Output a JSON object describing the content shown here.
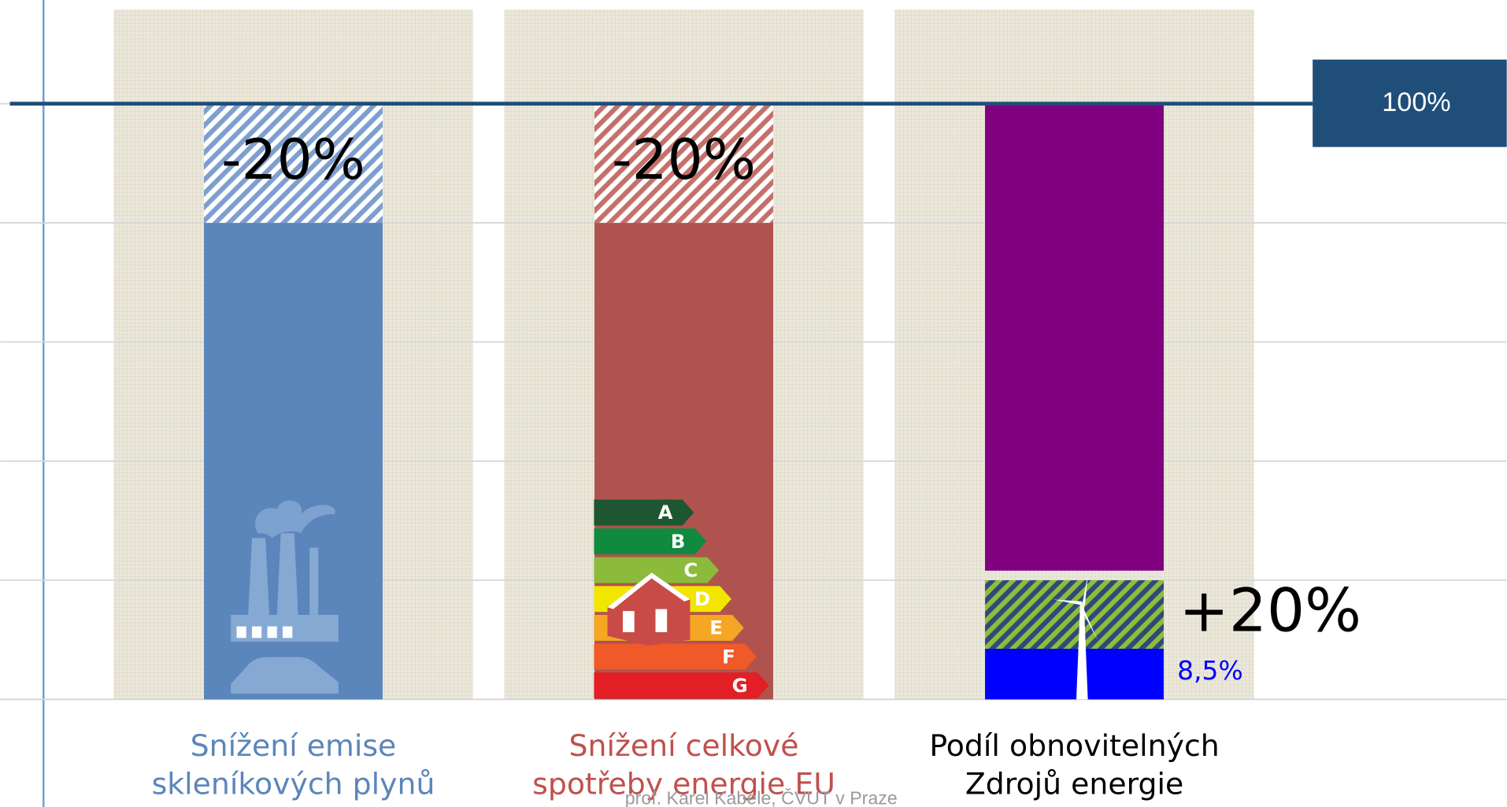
{
  "chart_data": {
    "type": "target_bars",
    "ylim": [
      0,
      115.8
    ],
    "yticks": [
      0,
      20,
      40,
      60,
      80,
      100
    ],
    "grid": true,
    "reference_line": {
      "value": 100,
      "label": "100%"
    },
    "bars": [
      {
        "label": [
          "Snížení emise",
          "skleníkových plynů"
        ],
        "label_color": "#5b86bb",
        "color": "#5b86bb",
        "hatch_color": "#7d9fcf",
        "value": 80,
        "change": -20,
        "change_label": "-20%"
      },
      {
        "label": [
          "Snížení celkové",
          "spotřeby  energie EU"
        ],
        "label_color": "#c0504d",
        "color": "#b0534f",
        "hatch_color": "#c4706b",
        "value": 80,
        "change": -20,
        "change_label": "-20%"
      },
      {
        "label": [
          "Podíl obnovitelných",
          "Zdrojů energie"
        ],
        "label_color": "#000000",
        "color": "#0000ff",
        "hatch_color": "#8fbc3a",
        "hatch_background": "#2d4a7a",
        "fill_color": "#800080",
        "value": 8.5,
        "value_label": "8,5%",
        "target": 20,
        "target_label": "+20%"
      }
    ],
    "energy_classes": {
      "labels": [
        "A",
        "B",
        "C",
        "D",
        "E",
        "F",
        "G"
      ],
      "colors": [
        "#1e5631",
        "#0f8a3f",
        "#8cbb3c",
        "#f2e600",
        "#f5a623",
        "#f05a28",
        "#e31e24"
      ]
    },
    "footer": "prof. Karel Kabele, ČVUT v Praze"
  }
}
